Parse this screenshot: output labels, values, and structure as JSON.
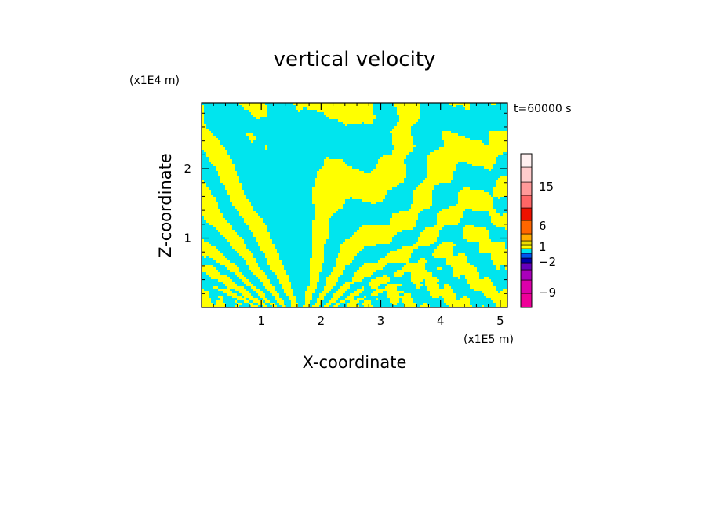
{
  "chart_data": {
    "type": "heatmap",
    "title": "vertical velocity",
    "xlabel": "X-coordinate",
    "ylabel": "Z-coordinate",
    "x_unit": "(x1E5 m)",
    "z_unit": "(x1E4 m)",
    "time_label": "t=60000 s",
    "xlim": [
      0,
      5.12
    ],
    "zlim": [
      0,
      2.95
    ],
    "x_ticks": [
      1,
      2,
      3,
      4,
      5
    ],
    "x_tick_labels": [
      "1",
      "2",
      "3",
      "4",
      "5"
    ],
    "z_ticks": [
      1,
      2
    ],
    "z_tick_labels": [
      "1",
      "2"
    ],
    "field_colors": {
      "positive": "#ffff00",
      "negative": "#00e5ee"
    },
    "colorbar": {
      "levels": [
        {
          "min": -12,
          "max": -9,
          "color": "#ee0099"
        },
        {
          "min": -9,
          "max": -6,
          "color": "#dd00aa"
        },
        {
          "min": -6,
          "max": -4,
          "color": "#aa00bb"
        },
        {
          "min": -4,
          "max": -3,
          "color": "#6600bb"
        },
        {
          "min": -3,
          "max": -2,
          "color": "#0000aa"
        },
        {
          "min": -2,
          "max": -1,
          "color": "#0055ee"
        },
        {
          "min": -1,
          "max": 0,
          "color": "#00e5ee"
        },
        {
          "min": 0,
          "max": 1,
          "color": "#ffff00"
        },
        {
          "min": 1,
          "max": 2,
          "color": "#eedd00"
        },
        {
          "min": 2,
          "max": 4,
          "color": "#ffaa00"
        },
        {
          "min": 4,
          "max": 6,
          "color": "#ff6600"
        },
        {
          "min": 6,
          "max": 9,
          "color": "#ee1100"
        },
        {
          "min": 9,
          "max": 12,
          "color": "#ff6666"
        },
        {
          "min": 12,
          "max": 15,
          "color": "#ff9999"
        },
        {
          "min": 15,
          "max": 20,
          "color": "#ffcccc"
        },
        {
          "min": 20,
          "max": 25,
          "color": "#fff0f0"
        }
      ],
      "tick_labels": [
        "15",
        "6",
        "1",
        "−2",
        "−9"
      ]
    }
  }
}
